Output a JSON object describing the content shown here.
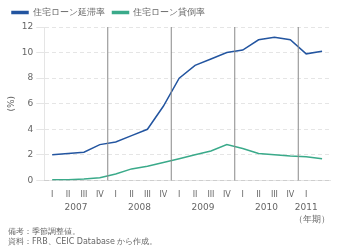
{
  "chart_data": {
    "type": "line",
    "ylabel": "(%)",
    "xlabel": "（年期）",
    "categories": [
      "I",
      "II",
      "III",
      "IV",
      "I",
      "II",
      "III",
      "IV",
      "I",
      "II",
      "III",
      "IV",
      "I",
      "II",
      "III",
      "IV",
      "I",
      null
    ],
    "series": [
      {
        "name": "住宅ローン延滞率",
        "color": "#2355a0",
        "values": [
          2.0,
          2.1,
          2.2,
          2.8,
          3.0,
          3.5,
          4.0,
          5.8,
          8.0,
          9.0,
          9.5,
          10.0,
          10.2,
          11.0,
          11.2,
          11.0,
          9.9,
          10.1
        ]
      },
      {
        "name": "住宅ローン貸倒率",
        "color": "#3aaa8a",
        "values": [
          0.05,
          0.05,
          0.1,
          0.2,
          0.5,
          0.9,
          1.1,
          1.4,
          1.7,
          2.0,
          2.3,
          2.8,
          2.5,
          2.1,
          2.0,
          1.9,
          1.85,
          1.7
        ]
      }
    ],
    "ylim": [
      0,
      12
    ],
    "yticks": [
      0,
      2,
      4,
      6,
      8,
      10,
      12
    ],
    "grid": true,
    "legend": "upper left",
    "annotations": [
      {
        "text": "2007",
        "x": 1.5
      },
      {
        "text": "2008",
        "x": 5.5
      },
      {
        "text": "2009",
        "x": 9.5
      },
      {
        "text": "2010",
        "x": 13.5
      },
      {
        "text": "2011",
        "x": 16
      }
    ],
    "vlines": [
      3.5,
      7.5,
      11.5,
      15.5
    ],
    "notes": [
      "備考：季節調整値。",
      "資料：FRB、CEIC Database から作成。"
    ]
  }
}
